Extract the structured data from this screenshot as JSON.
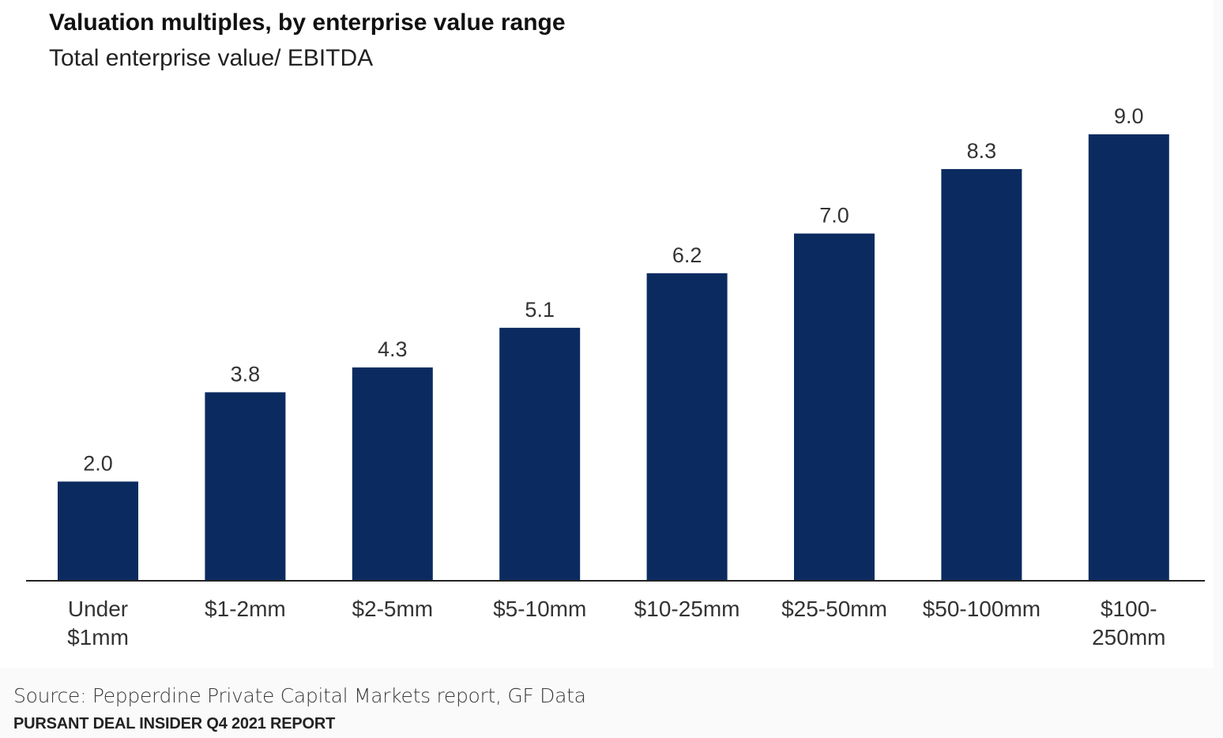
{
  "chart_data": {
    "type": "bar",
    "title": "Valuation multiples, by enterprise value range",
    "subtitle": "Total enterprise value/ EBITDA",
    "xlabel": "",
    "ylabel": "",
    "ylim": [
      0,
      9
    ],
    "grid": false,
    "categories": [
      [
        "Under",
        "$1mm"
      ],
      [
        "$1-2mm"
      ],
      [
        "$2-5mm"
      ],
      [
        "$5-10mm"
      ],
      [
        "$10-25mm"
      ],
      [
        "$25-50mm"
      ],
      [
        "$50-100mm"
      ],
      [
        "$100-",
        "250mm"
      ]
    ],
    "values": [
      2.0,
      3.8,
      4.3,
      5.1,
      6.2,
      7.0,
      8.3,
      9.0
    ],
    "value_labels": [
      "2.0",
      "3.8",
      "4.3",
      "5.1",
      "6.2",
      "7.0",
      "8.3",
      "9.0"
    ],
    "bar_color": "#0b2b60"
  },
  "footer": {
    "source": "Source: Pepperdine Private Capital Markets report, GF Data",
    "report": "PURSANT DEAL INSIDER Q4 2021 REPORT"
  }
}
